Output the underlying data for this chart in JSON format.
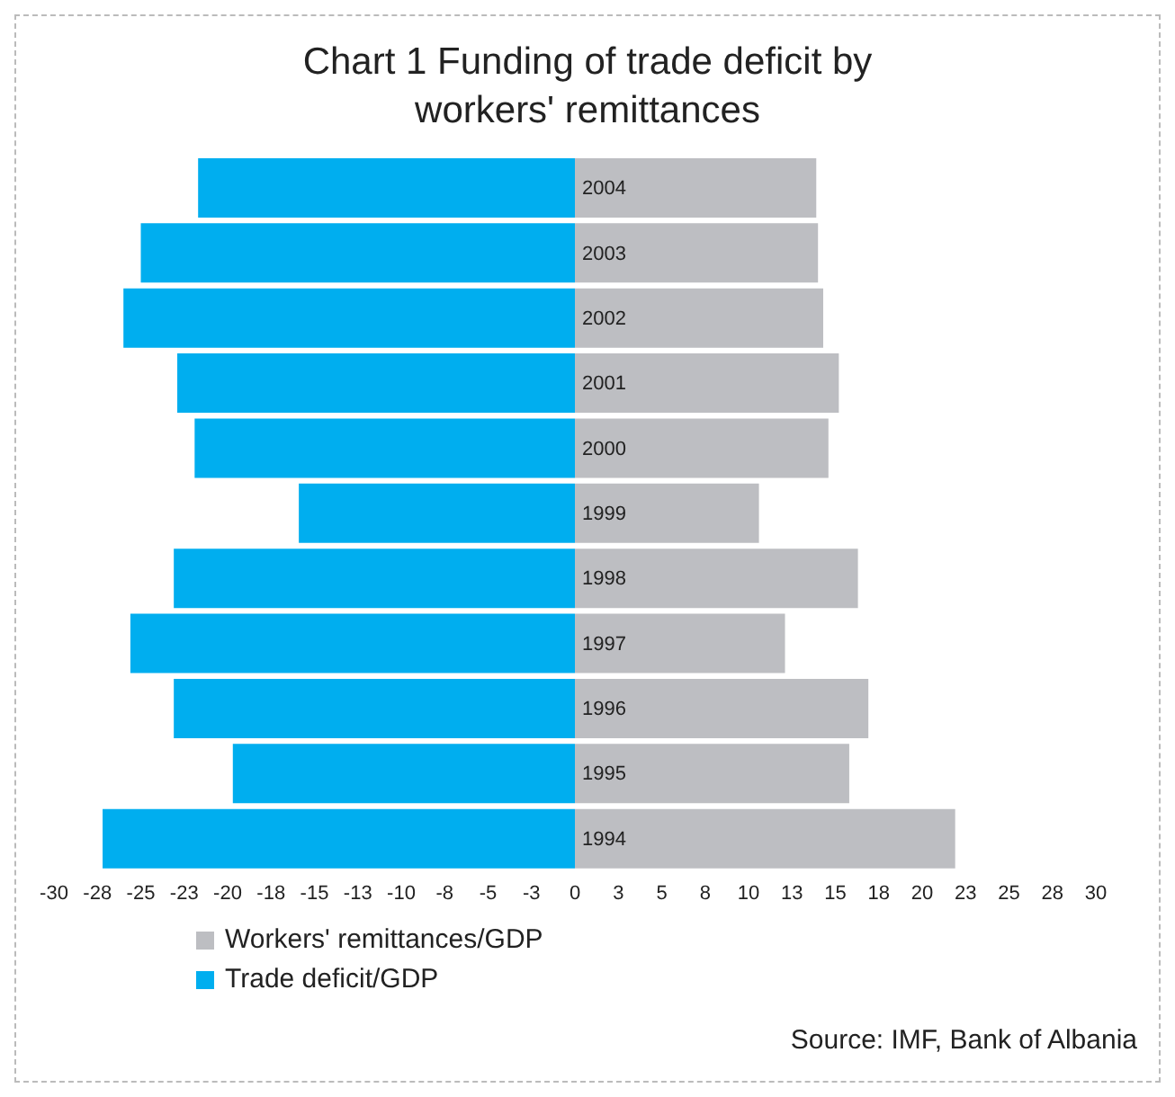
{
  "chart_data": {
    "type": "bar",
    "orientation": "horizontal",
    "stacked": true,
    "title": "Chart 1 Funding of trade deficit by workers' remittances",
    "categories": [
      "2004",
      "2003",
      "2002",
      "2001",
      "2000",
      "1999",
      "1998",
      "1997",
      "1996",
      "1995",
      "1994"
    ],
    "series": [
      {
        "name": "Workers' remittances/GDP",
        "color": "#bdbec2",
        "values": [
          13.9,
          14.0,
          14.3,
          15.2,
          14.6,
          10.6,
          16.3,
          12.1,
          16.9,
          15.8,
          21.9
        ]
      },
      {
        "name": "Trade deficit/GDP",
        "color": "#00aeef",
        "values": [
          -21.7,
          -25.0,
          -26.0,
          -22.9,
          -21.9,
          -15.9,
          -23.1,
          -25.6,
          -23.1,
          -19.7,
          -27.2
        ]
      }
    ],
    "xlim": [
      -30,
      30
    ],
    "xticks": [
      -30,
      {
        "value": -27.5,
        "label": "-28"
      },
      -25,
      {
        "value": -22.5,
        "label": "-23"
      },
      -20,
      {
        "value": -17.5,
        "label": "-18"
      },
      -15,
      {
        "value": -12.5,
        "label": "-13"
      },
      -10,
      {
        "value": -7.5,
        "label": "-8"
      },
      -5,
      {
        "value": -2.5,
        "label": "-3"
      },
      0,
      {
        "value": 2.5,
        "label": "3"
      },
      5,
      {
        "value": 7.5,
        "label": "8"
      },
      10,
      {
        "value": 12.5,
        "label": "13"
      },
      15,
      {
        "value": 17.5,
        "label": "18"
      },
      20,
      {
        "value": 22.5,
        "label": "23"
      },
      25,
      {
        "value": 27.5,
        "label": "28"
      },
      30
    ],
    "legend": "bottom left",
    "grid": false,
    "annotations": [
      "Source: IMF, Bank of Albania"
    ]
  }
}
